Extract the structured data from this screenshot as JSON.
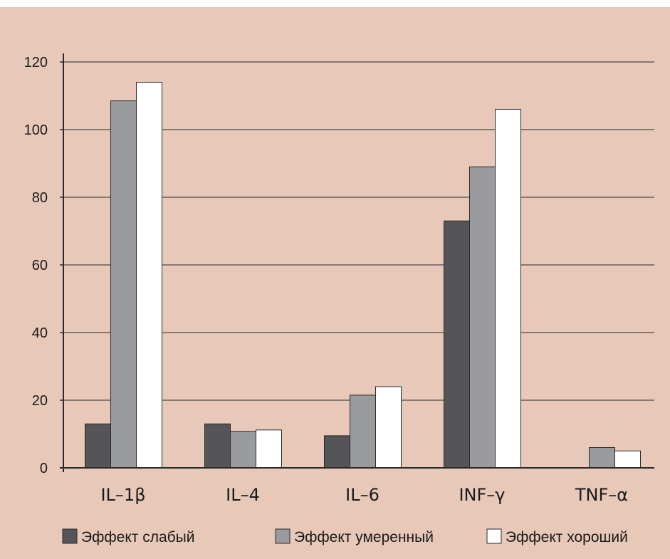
{
  "colors": {
    "background": "#e8c8b8",
    "border_top": "#ffffff",
    "series": [
      "#555558",
      "#9a9b9f",
      "#ffffff"
    ],
    "bar_stroke": "#2a2a2a",
    "grid": "#2a2a2a"
  },
  "chart_data": {
    "type": "bar",
    "title": "",
    "xlabel": "",
    "ylabel": "",
    "categories": [
      "IL–1β",
      "IL–4",
      "IL–6",
      "INF–γ",
      "TNF–α"
    ],
    "series": [
      {
        "name": "Эффект слабый",
        "values": [
          13,
          13,
          9.5,
          73,
          0
        ]
      },
      {
        "name": "Эффект умеренный",
        "values": [
          108.5,
          10.8,
          21.5,
          89,
          6
        ]
      },
      {
        "name": "Эффект хороший",
        "values": [
          114,
          11.2,
          24,
          106,
          5
        ]
      }
    ],
    "ylim": [
      0,
      120
    ],
    "yticks": [
      0,
      20,
      40,
      60,
      80,
      100,
      120
    ],
    "grid": true,
    "legend_position": "bottom"
  }
}
